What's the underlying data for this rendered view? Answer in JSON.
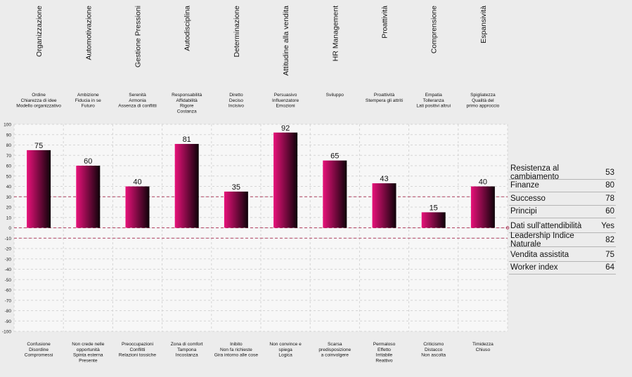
{
  "chart_data": {
    "type": "bar",
    "categories": [
      {
        "name": "Organizzazione",
        "top": [
          "Ordine",
          "Chiarezza di idee",
          "Modello organizzativo"
        ],
        "bottom": [
          "Confusione",
          "Disordine",
          "Compromessi"
        ]
      },
      {
        "name": "Automotivazione",
        "top": [
          "Ambizione",
          "Fiducia in se",
          "Futuro"
        ],
        "bottom": [
          "Non crede nelle",
          "opportunità",
          "Spinta esterna",
          "Presente"
        ]
      },
      {
        "name": "Gestione Pressioni",
        "top": [
          "Serenità",
          "Armonia",
          "Assenza di conflitti"
        ],
        "bottom": [
          "Preoccupazioni",
          "Conflitti",
          "Relazioni tossiche"
        ]
      },
      {
        "name": "Autodisciplina",
        "top": [
          "Responsabilità",
          "Affidabilità",
          "Rigore",
          "Costanza"
        ],
        "bottom": [
          "Zona di comfort",
          "Tampona",
          "Incostanza"
        ]
      },
      {
        "name": "Determinazione",
        "top": [
          "Diretto",
          "Deciso",
          "Incisivo"
        ],
        "bottom": [
          "Inibito",
          "Non fa richieste",
          "Gira intorno alle cose"
        ]
      },
      {
        "name": "Attitudine alla vendita",
        "top": [
          "Persuasivo",
          "Influenzatore",
          "Emozioni"
        ],
        "bottom": [
          "Non convince e",
          "spiega",
          "Logica"
        ]
      },
      {
        "name": "HR Management",
        "top": [
          "Sviluppo"
        ],
        "bottom": [
          "Scarsa",
          "predisposizione",
          "a coinvolgere"
        ]
      },
      {
        "name": "Proattività",
        "top": [
          "Proattività",
          "Stempera gli attriti"
        ],
        "bottom": [
          "Permaloso",
          "Effetto",
          "Irritabile",
          "Reattivo"
        ]
      },
      {
        "name": "Comprensione",
        "top": [
          "Empatia",
          "Tolleranza",
          "Lati positivi altrui"
        ],
        "bottom": [
          "Criticismo",
          "Distacco",
          "Non ascolta"
        ]
      },
      {
        "name": "Espansività",
        "top": [
          "Spigliatezza",
          "Qualità del",
          "primo approccio"
        ],
        "bottom": [
          "Timidezza",
          "Chiuso"
        ]
      }
    ],
    "values": [
      75,
      60,
      40,
      81,
      35,
      92,
      65,
      43,
      15,
      40
    ],
    "ylim": [
      -100,
      100
    ],
    "yticks": [
      100,
      90,
      80,
      70,
      60,
      50,
      40,
      30,
      20,
      10,
      0,
      -10,
      -20,
      -30,
      -40,
      -50,
      -60,
      -70,
      -80,
      -90,
      -100
    ],
    "reference_lines": [
      {
        "value": 30,
        "style": "dashed"
      },
      {
        "value": 0,
        "style": "dashed"
      },
      {
        "value": -10,
        "style": "dashed"
      }
    ],
    "grid": true,
    "colors": {
      "bar_start": "#e8117a",
      "bar_end": "#0d0208",
      "ref_line": "#b04060",
      "grid": "#d5d5d5",
      "background": "#f7f7f7"
    }
  },
  "stats": [
    {
      "label": "Resistenza al cambiamento",
      "value": "53"
    },
    {
      "label": "Finanze",
      "value": "80"
    },
    {
      "label": "Successo",
      "value": "78"
    },
    {
      "label": "Principi",
      "value": "60"
    },
    {
      "label": "Dati sull'attendibilità",
      "value": "Yes"
    },
    {
      "label": "Leadership Indice Naturale",
      "value": "82"
    },
    {
      "label": "Vendita assistita",
      "value": "75"
    },
    {
      "label": "Worker index",
      "value": "64"
    }
  ]
}
